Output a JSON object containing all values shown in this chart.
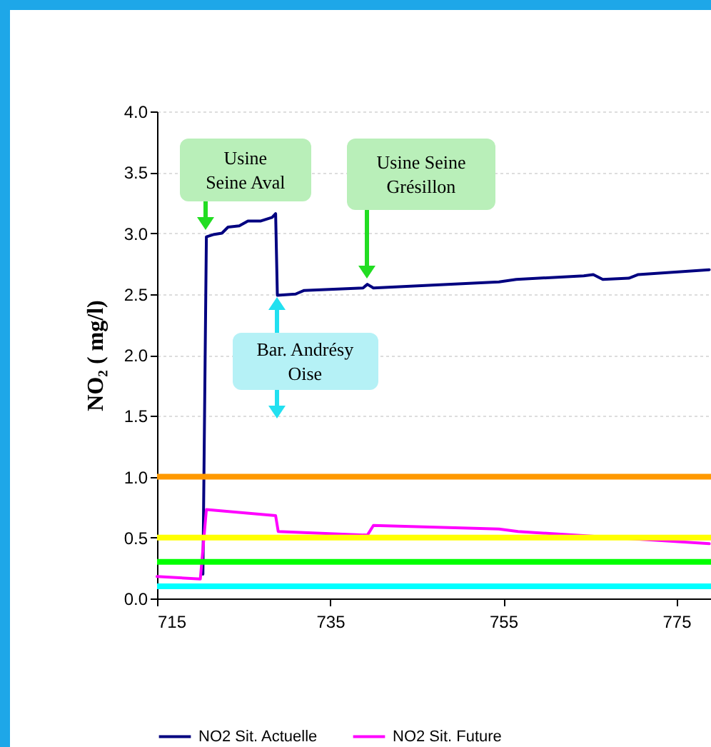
{
  "chart_data": {
    "type": "line",
    "ylabel": "NO₂ ( mg/l)",
    "xlim": [
      715,
      779
    ],
    "xticks": [
      715,
      735,
      755,
      775
    ],
    "ylim": [
      0,
      4
    ],
    "yticks": [
      {
        "value": 0,
        "label": "0.0"
      },
      {
        "value": 0.5,
        "label": "0.5"
      },
      {
        "value": 1,
        "label": "1.0"
      },
      {
        "value": 1.5,
        "label": "1.5"
      },
      {
        "value": 2,
        "label": "2.0"
      },
      {
        "value": 2.5,
        "label": "2.5"
      },
      {
        "value": 3,
        "label": "3.0"
      },
      {
        "value": 3.5,
        "label": "3.5"
      },
      {
        "value": 4,
        "label": "4.0"
      }
    ],
    "grid": "y",
    "legend": "bottom",
    "series": [
      {
        "name": "NO2 Sit. Actuelle",
        "color": "#000080",
        "x": [
          720.3,
          720.7,
          721.6,
          722.5,
          723.2,
          724.5,
          725.5,
          727.0,
          728.3,
          728.7,
          728.9,
          731.0,
          732.0,
          738.8,
          739.3,
          740.0,
          754.5,
          756.5,
          764.3,
          765.4,
          766.5,
          769.5,
          770.6,
          778.8
        ],
        "values": [
          0.2,
          2.97,
          2.99,
          3.0,
          3.05,
          3.06,
          3.1,
          3.1,
          3.13,
          3.16,
          2.49,
          2.5,
          2.53,
          2.55,
          2.58,
          2.55,
          2.6,
          2.62,
          2.65,
          2.66,
          2.62,
          2.63,
          2.66,
          2.7
        ]
      },
      {
        "name": "NO2 Sit. Future",
        "color": "#ff00ff",
        "x": [
          715.0,
          720.0,
          720.7,
          728.7,
          729.0,
          739.3,
          740.0,
          754.5,
          756.7,
          778.8
        ],
        "values": [
          0.18,
          0.16,
          0.73,
          0.68,
          0.55,
          0.52,
          0.6,
          0.57,
          0.55,
          0.45
        ]
      }
    ],
    "ref_lines": [
      {
        "axis": "y",
        "value": 1.0,
        "color": "#ff9900"
      },
      {
        "axis": "y",
        "value": 0.5,
        "color": "#ffff00"
      },
      {
        "axis": "y",
        "value": 0.3,
        "color": "#00ff00"
      },
      {
        "axis": "y",
        "value": 0.1,
        "color": "#00ffff"
      }
    ],
    "annotations": [
      {
        "text": "Usine\nSeine Aval",
        "x": 720.6,
        "y": 3.0
      },
      "Usine Seine\nGrésillon",
      {
        "text": "Bar. Andrésy\nOise",
        "x": 728.8,
        "y": 2.5
      }
    ]
  }
}
